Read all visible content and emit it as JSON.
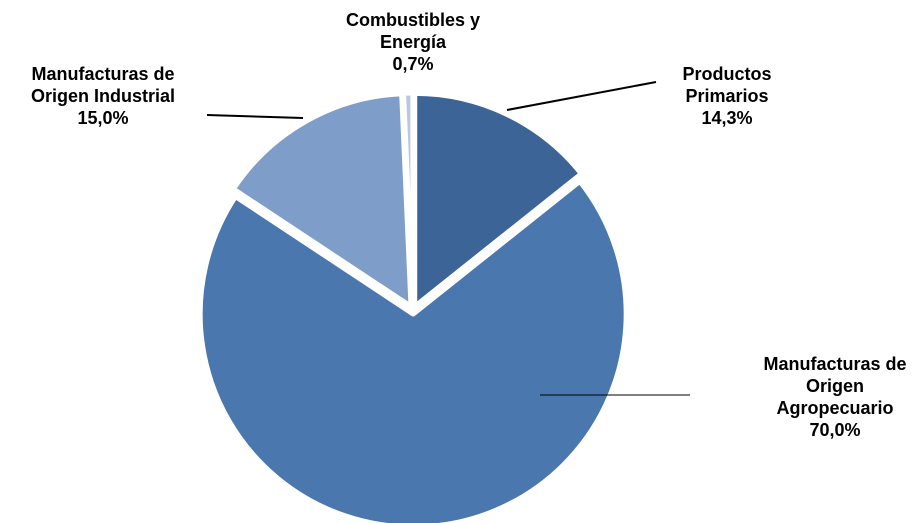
{
  "chart_data": {
    "type": "pie",
    "title": "",
    "slices": [
      {
        "name": "Productos Primarios",
        "value": 14.3,
        "label_lines": [
          "Productos",
          "Primarios"
        ],
        "value_label": "14,3%",
        "color": "#3C6496"
      },
      {
        "name": "Manufacturas de Origen Agropecuario",
        "value": 70.0,
        "label_lines": [
          "Manufacturas de",
          "Origen",
          "Agropecuario"
        ],
        "value_label": "70,0%",
        "color": "#4A78AE"
      },
      {
        "name": "Manufacturas de Origen Industrial",
        "value": 15.0,
        "label_lines": [
          "Manufacturas de",
          "Origen Industrial"
        ],
        "value_label": "15,0%",
        "color": "#7E9DC9"
      },
      {
        "name": "Combustibles y Energía",
        "value": 0.7,
        "label_lines": [
          "Combustibles y",
          "Energía"
        ],
        "value_label": "0,7%",
        "color": "#B7C8E3"
      }
    ],
    "start_angle": "12 o'clock",
    "direction": "clockwise",
    "legend": "none"
  }
}
